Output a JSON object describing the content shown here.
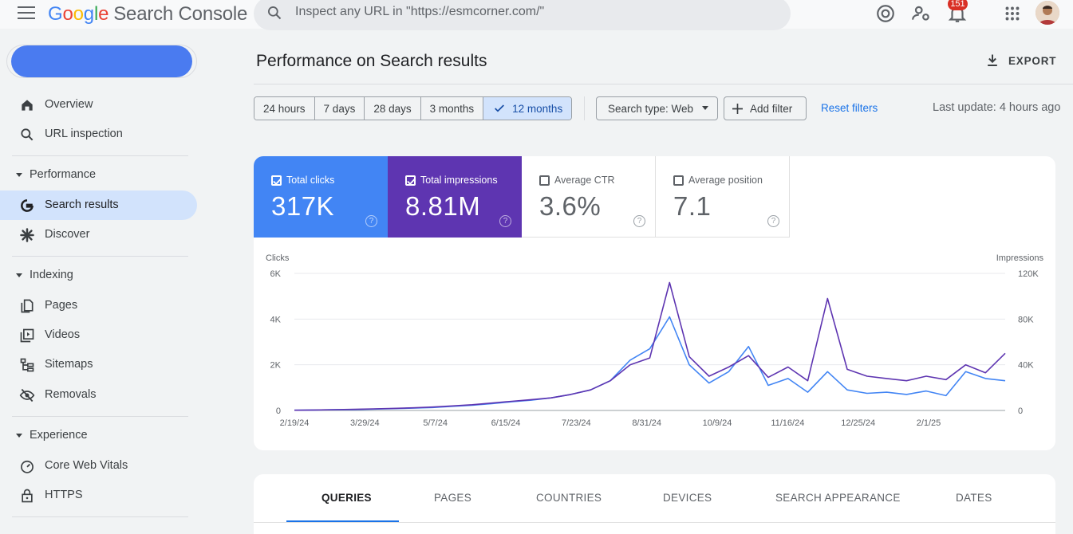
{
  "header": {
    "logo": {
      "g": "G",
      "o1": "o",
      "o2": "o",
      "g2": "g",
      "l": "l",
      "e": "e",
      "product": "Search Console"
    },
    "search_placeholder": "Inspect any URL in \"https://esmcorner.com/\"",
    "notification_count": "151",
    "icons": [
      "menu-icon",
      "search-icon",
      "help-icon",
      "manage-users-icon",
      "notifications-icon",
      "apps-icon"
    ]
  },
  "sidebar": {
    "top_items": [
      {
        "label": "Overview",
        "icon": "home-icon"
      },
      {
        "label": "URL inspection",
        "icon": "search-icon"
      }
    ],
    "sections": [
      {
        "title": "Performance",
        "items": [
          {
            "label": "Search results",
            "icon": "google-g-icon",
            "active": true
          },
          {
            "label": "Discover",
            "icon": "asterisk-icon"
          }
        ]
      },
      {
        "title": "Indexing",
        "items": [
          {
            "label": "Pages",
            "icon": "pages-icon"
          },
          {
            "label": "Videos",
            "icon": "video-icon"
          },
          {
            "label": "Sitemaps",
            "icon": "sitemap-icon"
          },
          {
            "label": "Removals",
            "icon": "removal-icon"
          }
        ]
      },
      {
        "title": "Experience",
        "items": [
          {
            "label": "Core Web Vitals",
            "icon": "speedometer-icon"
          },
          {
            "label": "HTTPS",
            "icon": "lock-icon"
          }
        ]
      }
    ]
  },
  "main": {
    "title": "Performance on Search results",
    "export_label": "EXPORT",
    "ranges": [
      "24 hours",
      "7 days",
      "28 days",
      "3 months",
      "12 months"
    ],
    "selected_range": "12 months",
    "search_type": "Search type: Web",
    "add_filter": "Add filter",
    "reset_filters": "Reset filters",
    "last_update": "Last update: 4 hours ago",
    "metrics": [
      {
        "label": "Total clicks",
        "value": "317K",
        "checked": true,
        "color": "#4285f4"
      },
      {
        "label": "Total impressions",
        "value": "8.81M",
        "checked": true,
        "color": "#5e35b1"
      },
      {
        "label": "Average CTR",
        "value": "3.6%",
        "checked": false
      },
      {
        "label": "Average position",
        "value": "7.1",
        "checked": false
      }
    ],
    "tabs": [
      "QUERIES",
      "PAGES",
      "COUNTRIES",
      "DEVICES",
      "SEARCH APPEARANCE",
      "DATES"
    ],
    "active_tab": "QUERIES"
  },
  "chart_data": {
    "type": "line",
    "left_axis_label": "Clicks",
    "right_axis_label": "Impressions",
    "left_ticks": [
      "0",
      "2K",
      "4K",
      "6K"
    ],
    "right_ticks": [
      "0",
      "40K",
      "80K",
      "120K"
    ],
    "ylim_left": [
      0,
      6000
    ],
    "ylim_right": [
      0,
      120000
    ],
    "x_labels": [
      "2/19/24",
      "3/29/24",
      "5/7/24",
      "6/15/24",
      "7/23/24",
      "8/31/24",
      "10/9/24",
      "11/16/24",
      "12/25/24",
      "2/1/25"
    ],
    "x_dates": [
      "2/19/24",
      "2/29/24",
      "3/10/24",
      "3/20/24",
      "3/30/24",
      "4/9/24",
      "4/19/24",
      "4/29/24",
      "5/9/24",
      "5/19/24",
      "5/29/24",
      "6/8/24",
      "6/18/24",
      "6/28/24",
      "7/8/24",
      "7/18/24",
      "7/28/24",
      "8/7/24",
      "8/17/24",
      "8/27/24",
      "9/6/24",
      "9/16/24",
      "9/26/24",
      "10/6/24",
      "10/16/24",
      "10/26/24",
      "11/5/24",
      "11/15/24",
      "11/25/24",
      "12/5/24",
      "12/15/24",
      "12/25/24",
      "1/4/25",
      "1/14/25",
      "1/24/25",
      "2/3/25",
      "2/13/25"
    ],
    "series": [
      {
        "name": "Clicks",
        "color": "#4285f4",
        "axis": "left",
        "values": [
          10,
          20,
          30,
          40,
          60,
          80,
          100,
          130,
          180,
          230,
          300,
          380,
          450,
          550,
          700,
          900,
          1300,
          2200,
          2700,
          4100,
          2000,
          1200,
          1700,
          2800,
          1100,
          1400,
          800,
          1700,
          900,
          750,
          800,
          700,
          850,
          650,
          1700,
          1400,
          1300
        ]
      },
      {
        "name": "Impressions",
        "color": "#5e35b1",
        "axis": "right",
        "values": [
          200,
          400,
          700,
          1000,
          1400,
          1800,
          2300,
          3000,
          4000,
          5000,
          6500,
          8000,
          9500,
          11000,
          14000,
          18000,
          26000,
          40000,
          46000,
          112000,
          47000,
          30000,
          38000,
          48000,
          29000,
          38000,
          26000,
          98000,
          36000,
          30000,
          28000,
          26000,
          30000,
          27000,
          40000,
          33000,
          50000
        ]
      }
    ]
  }
}
